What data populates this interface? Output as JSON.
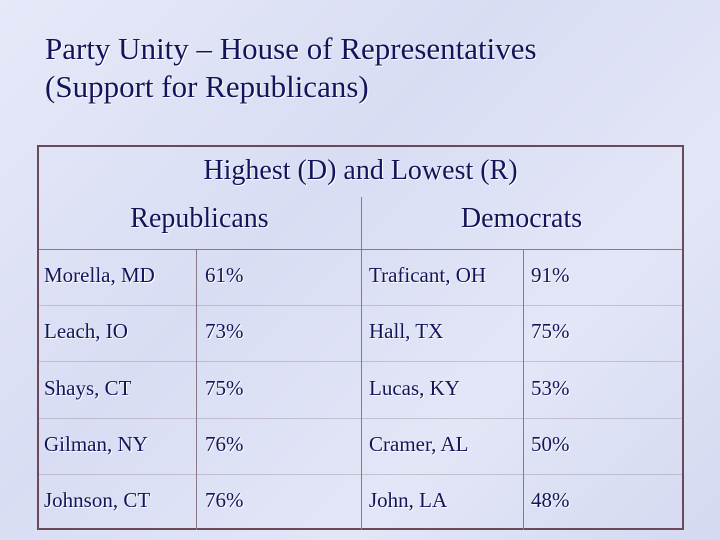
{
  "title": [
    "Party Unity – House of Representatives",
    "(Support for Republicans)"
  ],
  "table": {
    "caption": "Highest (D) and Lowest (R)",
    "groups": [
      "Republicans",
      "Democrats"
    ],
    "rows": [
      [
        "Morella, MD",
        "61%",
        "Traficant, OH",
        "91%"
      ],
      [
        "Leach, IO",
        "73%",
        "Hall, TX",
        "75%"
      ],
      [
        "Shays, CT",
        "75%",
        "Lucas, KY",
        "53%"
      ],
      [
        "Gilman, NY",
        "76%",
        "Cramer, AL",
        "50%"
      ],
      [
        "Johnson, CT",
        "76%",
        "John, LA",
        "48%"
      ]
    ]
  }
}
